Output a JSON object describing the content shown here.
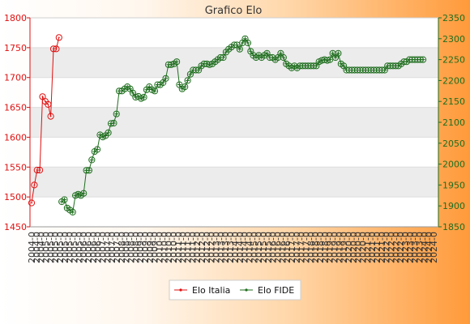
{
  "chart_data": {
    "type": "line",
    "title": "Grafico Elo",
    "colors": {
      "italia": "#e01010",
      "fide": "#1f6e1f",
      "band": "#ececec"
    },
    "left_axis": {
      "min": 1450,
      "max": 1800,
      "ticks": [
        1450,
        1500,
        1550,
        1600,
        1650,
        1700,
        1750,
        1800
      ]
    },
    "right_axis": {
      "min": 1850,
      "max": 2350,
      "ticks": [
        1850,
        1900,
        1950,
        2000,
        2050,
        2100,
        2150,
        2200,
        2250,
        2300,
        2350
      ]
    },
    "legend": {
      "position": "bottom-center",
      "entries": [
        "Elo Italia",
        "Elo FIDE"
      ]
    },
    "series": [
      {
        "name": "Elo Italia",
        "axis": "left",
        "start_index": 0,
        "values": [
          1490,
          1520,
          1545,
          1545,
          1668,
          1660,
          1655,
          1635,
          1748,
          1748,
          1767
        ]
      },
      {
        "name": "Elo FIDE",
        "axis": "right",
        "start_index": 11,
        "values": [
          1910,
          1915,
          1895,
          1890,
          1885,
          1925,
          1928,
          1925,
          1930,
          1985,
          1985,
          2010,
          2030,
          2035,
          2070,
          2065,
          2068,
          2075,
          2097,
          2098,
          2120,
          2175,
          2175,
          2180,
          2185,
          2180,
          2170,
          2160,
          2162,
          2157,
          2160,
          2178,
          2185,
          2178,
          2175,
          2190,
          2190,
          2195,
          2205,
          2238,
          2238,
          2240,
          2245,
          2190,
          2180,
          2185,
          2200,
          2215,
          2225,
          2225,
          2225,
          2235,
          2240,
          2240,
          2238,
          2240,
          2245,
          2250,
          2255,
          2255,
          2268,
          2275,
          2280,
          2285,
          2285,
          2275,
          2290,
          2300,
          2290,
          2270,
          2260,
          2255,
          2260,
          2255,
          2260,
          2265,
          2255,
          2255,
          2250,
          2255,
          2265,
          2255,
          2240,
          2235,
          2230,
          2235,
          2230,
          2235,
          2235,
          2235,
          2235,
          2235,
          2235,
          2235,
          2245,
          2248,
          2250,
          2248,
          2250,
          2265,
          2255,
          2265,
          2240,
          2235,
          2225,
          2225,
          2225,
          2225,
          2225,
          2225,
          2225,
          2225,
          2225,
          2225,
          2225,
          2225,
          2225,
          2225,
          2225,
          2235,
          2235,
          2235,
          2235,
          2235,
          2240,
          2245,
          2245,
          2250,
          2250,
          2250,
          2250,
          2250,
          2250
        ]
      }
    ],
    "x_count": 149,
    "x_tick_labels": [
      "2004-0",
      "2004-0",
      "2004-0",
      "2005-0",
      "2005-0",
      "2005-0",
      "2005-0",
      "2005-0",
      "2005-0",
      "2005-0",
      "2005-0",
      "2006-0",
      "2006-0",
      "2006-0",
      "2006-0",
      "2007-0",
      "2007-0",
      "2007-0",
      "2007-0",
      "2008-0",
      "2008-0",
      "2008-0",
      "2008-0",
      "2009-0",
      "2009-0",
      "2009-0",
      "2009-0",
      "2010-0",
      "2010-0",
      "2010-0",
      "2010-0",
      "2011-0",
      "2011-0",
      "2011-0",
      "2011-0",
      "2012-0",
      "2012-0",
      "2012-0",
      "2012-0",
      "2013-0",
      "2013-0",
      "2013-0",
      "2013-0",
      "2014-0",
      "2014-0",
      "2014-0",
      "2014-0",
      "2015-0",
      "2015-0",
      "2015-0",
      "2015-0",
      "2016-0",
      "2016-0",
      "2016-0",
      "2016-0",
      "2017-0",
      "2017-0",
      "2017-0",
      "2017-0",
      "2018-0",
      "2018-0",
      "2018-0",
      "2018-0",
      "2019-0",
      "2019-0",
      "2019-0",
      "2019-0",
      "2020-0",
      "2020-0",
      "2020-0",
      "2020-0",
      "2021-0",
      "2021-0",
      "2021-0",
      "2021-0",
      "2022-0",
      "2022-0",
      "2022-0",
      "2022-0",
      "2023-0",
      "2023-0",
      "2023-0",
      "2023-0",
      "2024-0",
      "2024-0",
      "2024-0"
    ]
  }
}
